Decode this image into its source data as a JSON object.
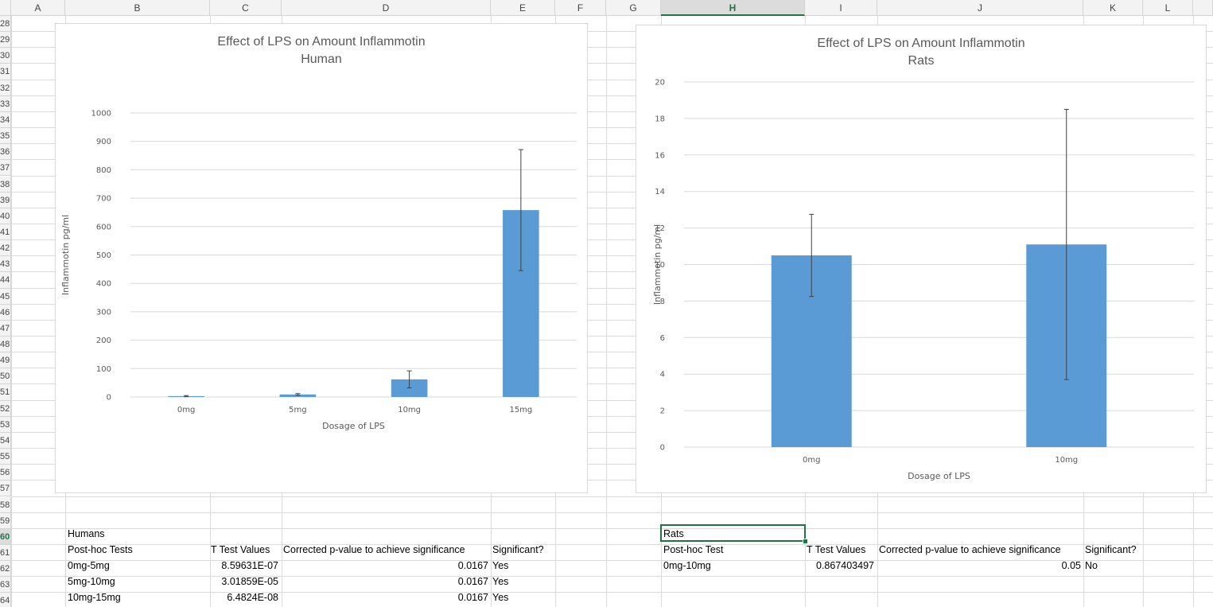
{
  "spreadsheet": {
    "columns": [
      "A",
      "B",
      "C",
      "D",
      "E",
      "F",
      "G",
      "H",
      "I",
      "J",
      "K",
      "L"
    ],
    "selected_column": "H",
    "rows": [
      "28",
      "29",
      "30",
      "31",
      "32",
      "33",
      "34",
      "35",
      "36",
      "37",
      "38",
      "39",
      "40",
      "41",
      "42",
      "43",
      "44",
      "45",
      "46",
      "47",
      "48",
      "49",
      "50",
      "51",
      "52",
      "53",
      "54",
      "55",
      "56",
      "57",
      "58",
      "59",
      "60",
      "61",
      "62",
      "63",
      "64"
    ],
    "selected_row": "60"
  },
  "humans_table": {
    "title": "Humans",
    "headers": [
      "Post-hoc Tests",
      "T Test Values",
      "Corrected p-value to achieve significance",
      "Significant?"
    ],
    "rows": [
      [
        "0mg-5mg",
        "8.59631E-07",
        "0.0167",
        "Yes"
      ],
      [
        "5mg-10mg",
        "3.01859E-05",
        "0.0167",
        "Yes"
      ],
      [
        "10mg-15mg",
        "6.4824E-08",
        "0.0167",
        "Yes"
      ]
    ]
  },
  "rats_table": {
    "title": "Rats",
    "headers": [
      "Post-hoc Test",
      "T Test Values",
      "Corrected p-value to achieve significance",
      "Significant?"
    ],
    "rows": [
      [
        "0mg-10mg",
        "0.867403497",
        "0.05",
        "No"
      ]
    ]
  },
  "chart_data": [
    {
      "type": "bar",
      "title": "Effect of LPS on Amount Inflammotin",
      "subtitle": "Human",
      "xlabel": "Dosage of LPS",
      "ylabel": "Inflammotin pg/ml",
      "categories": [
        "0mg",
        "5mg",
        "10mg",
        "15mg"
      ],
      "values": [
        3,
        9,
        62,
        658
      ],
      "error": [
        2,
        3,
        30,
        213
      ],
      "ylim": [
        0,
        1000
      ],
      "yticks": [
        0,
        100,
        200,
        300,
        400,
        500,
        600,
        700,
        800,
        900,
        1000
      ],
      "grid": true,
      "bar_color": "#5b9bd5"
    },
    {
      "type": "bar",
      "title": "Effect of LPS on Amount Inflammotin",
      "subtitle": "Rats",
      "xlabel": "Dosage of LPS",
      "ylabel": "Inflammotin pg/ml",
      "categories": [
        "0mg",
        "10mg"
      ],
      "values": [
        10.5,
        11.1
      ],
      "error": [
        2.25,
        7.4
      ],
      "ylim": [
        0,
        20
      ],
      "yticks": [
        0,
        2,
        4,
        6,
        8,
        10,
        12,
        14,
        16,
        18,
        20
      ],
      "grid": true,
      "bar_color": "#5b9bd5"
    }
  ]
}
